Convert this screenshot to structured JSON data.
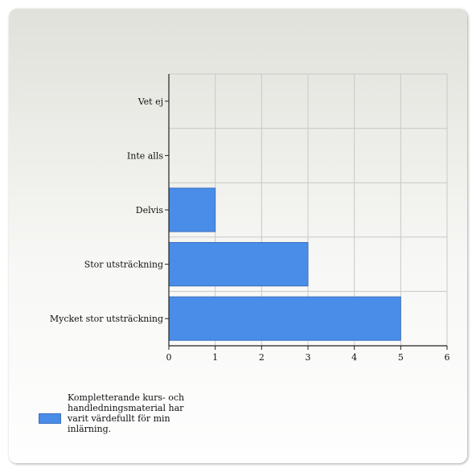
{
  "chart_data": {
    "type": "bar",
    "orientation": "horizontal",
    "categories": [
      "Vet ej",
      "Inte alls",
      "Delvis",
      "Stor utsträckning",
      "Mycket stor utsträckning"
    ],
    "series": [
      {
        "name": "Kompletterande kurs- och handledningsmaterial har varit värdefullt för min inlärning.",
        "values": [
          0,
          0,
          1,
          3,
          5
        ],
        "color": "#4a8de8"
      }
    ],
    "xlim": [
      0,
      6
    ],
    "xticks": [
      0,
      1,
      2,
      3,
      4,
      5,
      6
    ],
    "grid": true,
    "legend_position": "bottom-left"
  }
}
